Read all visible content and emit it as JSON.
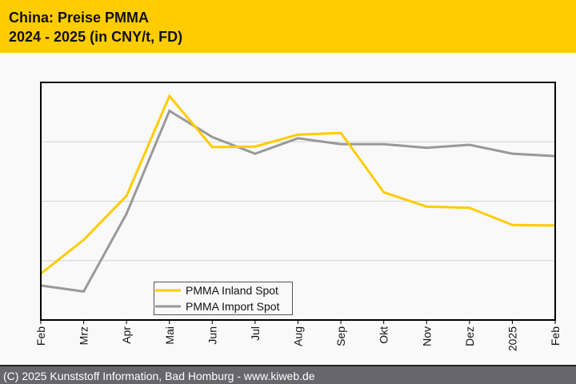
{
  "header": {
    "title_line1": "China: Preise PMMA",
    "title_line2": "2024 - 2025 (in CNY/t, FD)"
  },
  "footer": {
    "text": "(C) 2025 Kunststoff Information, Bad Homburg - www.kiweb.de"
  },
  "colors": {
    "header_bg": "#ffcc00",
    "inland": "#ffcc00",
    "import": "#999999",
    "footer_bg": "#66666c"
  },
  "chart_data": {
    "type": "line",
    "title": "China: Preise PMMA 2024 - 2025 (in CNY/t, FD)",
    "xlabel": "",
    "ylabel": "",
    "y_tick_labels_shown": false,
    "y_units": "relative index (gridline units, 0 = bottom axis)",
    "ylim": [
      0,
      4
    ],
    "y_gridlines": [
      1,
      2,
      3
    ],
    "grid": true,
    "legend_position": "bottom-left",
    "categories": [
      "Feb",
      "Mrz",
      "Apr",
      "Mai",
      "Jun",
      "Jul",
      "Aug",
      "Sep",
      "Okt",
      "Nov",
      "Dez",
      "2025",
      "Feb"
    ],
    "series": [
      {
        "name": "PMMA Inland Spot",
        "color": "#ffcc00",
        "values": [
          0.78,
          1.35,
          2.09,
          3.77,
          2.91,
          2.92,
          3.12,
          3.15,
          2.15,
          1.91,
          1.89,
          1.6,
          1.59
        ]
      },
      {
        "name": "PMMA Import Spot",
        "color": "#999999",
        "values": [
          0.58,
          0.48,
          1.79,
          3.52,
          3.08,
          2.8,
          3.06,
          2.96,
          2.96,
          2.9,
          2.95,
          2.8,
          2.76
        ]
      }
    ]
  }
}
